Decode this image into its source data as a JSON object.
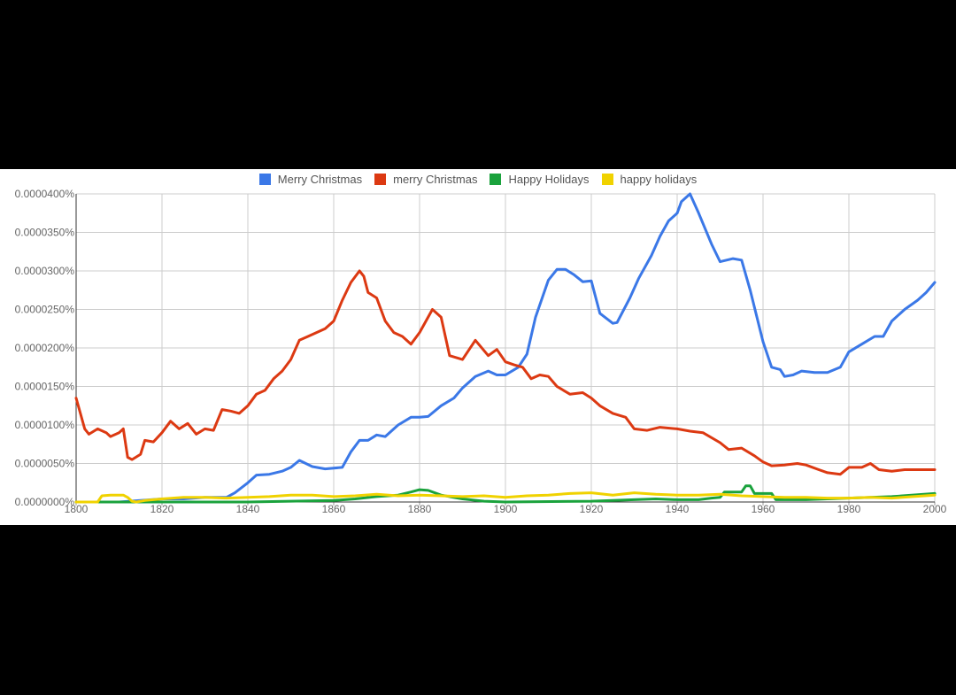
{
  "chart_data": {
    "type": "line",
    "title": "",
    "xlabel": "",
    "ylabel": "",
    "xlim": [
      1800,
      2000
    ],
    "ylim": [
      0,
      4e-05
    ],
    "x_ticks": [
      "1800",
      "1820",
      "1840",
      "1860",
      "1880",
      "1900",
      "1920",
      "1940",
      "1960",
      "1980",
      "2000"
    ],
    "x_tick_values": [
      1800,
      1820,
      1840,
      1860,
      1880,
      1900,
      1920,
      1940,
      1960,
      1980,
      2000
    ],
    "y_ticks": [
      "0.0000000%",
      "0.0000050%",
      "0.0000100%",
      "0.0000150%",
      "0.0000200%",
      "0.0000250%",
      "0.0000300%",
      "0.0000350%",
      "0.0000400%"
    ],
    "y_tick_values": [
      0,
      5e-06,
      1e-05,
      1.5e-05,
      2e-05,
      2.5e-05,
      3e-05,
      3.5e-05,
      4e-05
    ],
    "grid": true,
    "legend_position": "top",
    "series": [
      {
        "name": "Merry Christmas",
        "color": "#3b78e7",
        "x": [
          1800,
          1810,
          1815,
          1820,
          1825,
          1830,
          1835,
          1837,
          1840,
          1842,
          1845,
          1848,
          1850,
          1852,
          1855,
          1858,
          1862,
          1864,
          1866,
          1868,
          1870,
          1872,
          1875,
          1878,
          1880,
          1882,
          1885,
          1888,
          1890,
          1893,
          1896,
          1898,
          1900,
          1903,
          1905,
          1907,
          1910,
          1912,
          1914,
          1916,
          1918,
          1920,
          1922,
          1925,
          1926,
          1929,
          1931,
          1934,
          1936,
          1938,
          1940,
          1941,
          1943,
          1945,
          1948,
          1950,
          1953,
          1955,
          1957,
          1960,
          1962,
          1964,
          1965,
          1967,
          1969,
          1972,
          1975,
          1978,
          1980,
          1983,
          1986,
          1988,
          1990,
          1993,
          1996,
          1998,
          2000
        ],
        "values": [
          0.0,
          0.0,
          2e-07,
          4e-07,
          4e-07,
          6e-07,
          6e-07,
          1.2e-06,
          2.5e-06,
          3.5e-06,
          3.6e-06,
          4e-06,
          4.5e-06,
          5.4e-06,
          4.6e-06,
          4.3e-06,
          4.5e-06,
          6.5e-06,
          8e-06,
          8e-06,
          8.7e-06,
          8.5e-06,
          1e-05,
          1.1e-05,
          1.1e-05,
          1.11e-05,
          1.25e-05,
          1.35e-05,
          1.48e-05,
          1.63e-05,
          1.7e-05,
          1.65e-05,
          1.65e-05,
          1.75e-05,
          1.92e-05,
          2.4e-05,
          2.88e-05,
          3.02e-05,
          3.02e-05,
          2.95e-05,
          2.86e-05,
          2.87e-05,
          2.45e-05,
          2.32e-05,
          2.33e-05,
          2.65e-05,
          2.9e-05,
          3.2e-05,
          3.45e-05,
          3.65e-05,
          3.75e-05,
          3.9e-05,
          4e-05,
          3.75e-05,
          3.35e-05,
          3.12e-05,
          3.16e-05,
          3.14e-05,
          2.75e-05,
          2.08e-05,
          1.75e-05,
          1.72e-05,
          1.63e-05,
          1.65e-05,
          1.7e-05,
          1.68e-05,
          1.68e-05,
          1.75e-05,
          1.95e-05,
          2.05e-05,
          2.15e-05,
          2.15e-05,
          2.35e-05,
          2.5e-05,
          2.62e-05,
          2.72e-05,
          2.85e-05
        ]
      },
      {
        "name": "merry Christmas",
        "color": "#dc3912",
        "x": [
          1800,
          1802,
          1803,
          1805,
          1807,
          1808,
          1810,
          1811,
          1812,
          1813,
          1815,
          1816,
          1818,
          1820,
          1822,
          1824,
          1826,
          1828,
          1830,
          1832,
          1834,
          1836,
          1838,
          1840,
          1842,
          1844,
          1846,
          1848,
          1850,
          1852,
          1854,
          1856,
          1858,
          1860,
          1862,
          1864,
          1866,
          1867,
          1868,
          1870,
          1872,
          1874,
          1876,
          1878,
          1880,
          1883,
          1885,
          1887,
          1890,
          1893,
          1896,
          1898,
          1900,
          1902,
          1904,
          1906,
          1908,
          1910,
          1912,
          1915,
          1918,
          1920,
          1922,
          1925,
          1928,
          1930,
          1933,
          1936,
          1940,
          1943,
          1946,
          1950,
          1952,
          1955,
          1958,
          1960,
          1962,
          1965,
          1968,
          1970,
          1973,
          1975,
          1978,
          1980,
          1983,
          1985,
          1987,
          1990,
          1993,
          1996,
          2000
        ],
        "values": [
          1.35e-05,
          9.5e-06,
          8.8e-06,
          9.5e-06,
          9e-06,
          8.5e-06,
          9e-06,
          9.5e-06,
          5.8e-06,
          5.5e-06,
          6.2e-06,
          8e-06,
          7.8e-06,
          9e-06,
          1.05e-05,
          9.5e-06,
          1.02e-05,
          8.8e-06,
          9.5e-06,
          9.3e-06,
          1.2e-05,
          1.18e-05,
          1.15e-05,
          1.25e-05,
          1.4e-05,
          1.45e-05,
          1.6e-05,
          1.7e-05,
          1.85e-05,
          2.1e-05,
          2.15e-05,
          2.2e-05,
          2.25e-05,
          2.35e-05,
          2.62e-05,
          2.85e-05,
          3e-05,
          2.93e-05,
          2.72e-05,
          2.65e-05,
          2.35e-05,
          2.2e-05,
          2.15e-05,
          2.05e-05,
          2.2e-05,
          2.5e-05,
          2.4e-05,
          1.9e-05,
          1.85e-05,
          2.1e-05,
          1.9e-05,
          1.98e-05,
          1.82e-05,
          1.78e-05,
          1.75e-05,
          1.6e-05,
          1.65e-05,
          1.63e-05,
          1.5e-05,
          1.4e-05,
          1.42e-05,
          1.35e-05,
          1.25e-05,
          1.15e-05,
          1.1e-05,
          9.5e-06,
          9.3e-06,
          9.7e-06,
          9.5e-06,
          9.2e-06,
          9e-06,
          7.7e-06,
          6.8e-06,
          7e-06,
          6e-06,
          5.2e-06,
          4.7e-06,
          4.8e-06,
          5e-06,
          4.8e-06,
          4.2e-06,
          3.8e-06,
          3.6e-06,
          4.5e-06,
          4.5e-06,
          5e-06,
          4.2e-06,
          4e-06,
          4.2e-06,
          4.2e-06,
          4.2e-06
        ]
      },
      {
        "name": "Happy Holidays",
        "color": "#1aa23c",
        "x": [
          1800,
          1840,
          1850,
          1860,
          1865,
          1870,
          1875,
          1878,
          1880,
          1882,
          1885,
          1890,
          1895,
          1900,
          1920,
          1930,
          1935,
          1940,
          1945,
          1948,
          1950,
          1951,
          1955,
          1956,
          1957,
          1958,
          1960,
          1962,
          1963,
          1965,
          1970,
          1980,
          1990,
          2000
        ],
        "values": [
          0.0,
          0.0,
          1e-07,
          2e-07,
          4e-07,
          7e-07,
          9e-07,
          1.3e-06,
          1.6e-06,
          1.5e-06,
          9e-07,
          4e-07,
          1e-07,
          0.0,
          1e-07,
          3e-07,
          4e-07,
          3e-07,
          3e-07,
          5e-07,
          6e-07,
          1.3e-06,
          1.3e-06,
          2.1e-06,
          2.1e-06,
          1.1e-06,
          1.1e-06,
          1.1e-06,
          3e-07,
          3e-07,
          3e-07,
          5e-07,
          7e-07,
          1.1e-06
        ]
      },
      {
        "name": "happy holidays",
        "color": "#f0d200",
        "x": [
          1800,
          1805,
          1806,
          1808,
          1811,
          1812,
          1813,
          1814,
          1816,
          1820,
          1825,
          1830,
          1835,
          1840,
          1845,
          1850,
          1855,
          1860,
          1865,
          1870,
          1875,
          1880,
          1885,
          1890,
          1895,
          1900,
          1905,
          1910,
          1915,
          1920,
          1925,
          1930,
          1935,
          1940,
          1945,
          1950,
          1955,
          1960,
          1965,
          1970,
          1975,
          1980,
          1985,
          1990,
          1995,
          2000
        ],
        "values": [
          0.0,
          0.0,
          8e-07,
          9e-07,
          9e-07,
          6e-07,
          1e-07,
          0.0,
          2e-07,
          4e-07,
          6e-07,
          6e-07,
          5e-07,
          6e-07,
          7e-07,
          9e-07,
          9e-07,
          7e-07,
          8e-07,
          1e-06,
          8e-07,
          9e-07,
          8e-07,
          7e-07,
          8e-07,
          6e-07,
          8e-07,
          9e-07,
          1.1e-06,
          1.2e-06,
          9e-07,
          1.2e-06,
          1e-06,
          9e-07,
          9e-07,
          1e-06,
          8e-07,
          7e-07,
          6e-07,
          6e-07,
          5e-07,
          5e-07,
          6e-07,
          5e-07,
          7e-07,
          9e-07
        ]
      }
    ]
  }
}
